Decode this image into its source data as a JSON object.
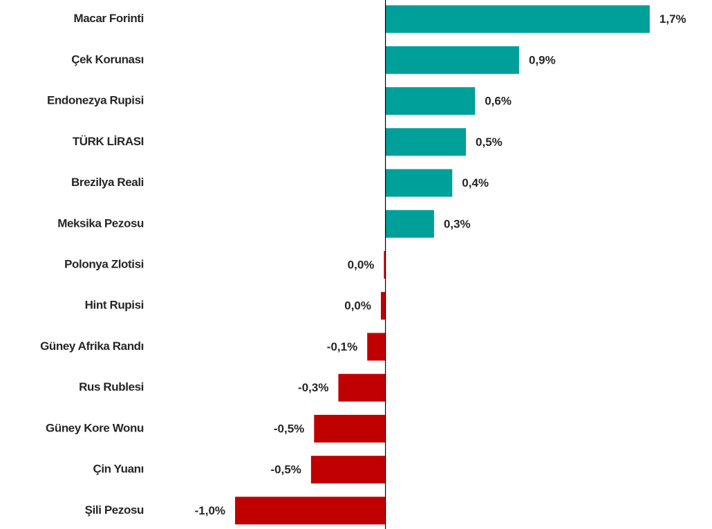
{
  "chart_data": {
    "type": "barh",
    "categories": [
      "Macar Forinti",
      "Çek Korunası",
      "Endonezya Rupisi",
      "TÜRK LİRASI",
      "Brezilya Reali",
      "Meksika Pezosu",
      "Polonya Zlotisi",
      "Hint Rupisi",
      "Güney Afrika Randı",
      "Rus Rublesi",
      "Güney Kore Wonu",
      "Çin Yuanı",
      "Şili Pezosu"
    ],
    "values": [
      1.74,
      0.88,
      0.59,
      0.53,
      0.44,
      0.32,
      -0.01,
      -0.03,
      -0.12,
      -0.31,
      -0.47,
      -0.49,
      -0.99
    ],
    "value_labels": [
      "1,7%",
      "0,9%",
      "0,6%",
      "0,5%",
      "0,4%",
      "0,3%",
      "0,0%",
      "0,0%",
      "-0,1%",
      "-0,3%",
      "-0,5%",
      "-0,5%",
      "-1,0%"
    ],
    "color_positive": "#00a09a",
    "color_negative": "#c00000",
    "xlim": [
      -1.5,
      2.15
    ]
  }
}
